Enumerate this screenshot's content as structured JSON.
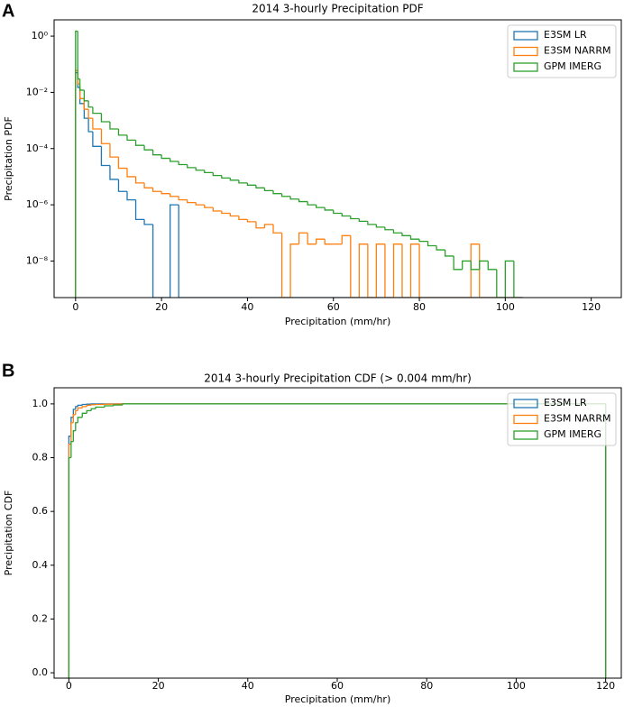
{
  "chart_data": [
    {
      "type": "histogram",
      "panel_label": "A",
      "title": "2014 3-hourly Precipitation PDF",
      "xlabel": "Precipitation (mm/hr)",
      "ylabel": "Precipitation PDF",
      "log_scale": true,
      "grid": false,
      "legend": "upper right",
      "xlim": [
        -5,
        127
      ],
      "xticks": [
        0,
        20,
        40,
        60,
        80,
        100,
        120
      ],
      "ylim": [
        5e-10,
        3.8
      ],
      "yticks": [
        {
          "value": 1,
          "label": "10⁰"
        },
        {
          "value": 0.01,
          "label": "10⁻²"
        },
        {
          "value": 0.0001,
          "label": "10⁻⁴"
        },
        {
          "value": 1e-06,
          "label": "10⁻⁶"
        },
        {
          "value": 1e-08,
          "label": "10⁻⁸"
        }
      ],
      "bins": [
        0,
        0.5,
        1,
        2,
        3,
        4,
        6,
        8,
        10,
        12,
        14,
        16,
        18,
        20,
        22,
        24,
        26,
        28,
        30,
        32,
        34,
        36,
        38,
        40,
        42,
        44,
        46,
        48,
        50,
        52,
        54,
        56,
        58,
        60,
        62,
        64,
        66,
        68,
        70,
        72,
        74,
        76,
        78,
        80,
        82,
        84,
        86,
        88,
        90,
        92,
        94,
        96,
        98,
        100,
        102,
        104
      ],
      "series": [
        {
          "name": "E3SM LR",
          "color": "#1f77b4",
          "values": [
            0.05,
            0.015,
            0.004,
            0.0012,
            0.0004,
            0.00012,
            2.5e-05,
            8e-06,
            3e-06,
            1.5e-06,
            3e-07,
            2e-07,
            0,
            0,
            1e-06,
            0,
            0,
            0,
            0,
            0,
            0,
            0,
            0,
            0,
            0,
            0,
            0,
            0,
            0,
            0,
            0,
            0,
            0,
            0,
            0,
            0,
            0,
            0,
            0,
            0,
            0,
            0,
            0,
            0,
            0,
            0,
            0,
            0,
            0,
            0,
            0,
            0,
            0,
            0,
            0
          ]
        },
        {
          "name": "E3SM NARRM",
          "color": "#ff7f0e",
          "values": [
            0.06,
            0.02,
            0.006,
            0.0025,
            0.0012,
            0.0005,
            0.00015,
            5e-05,
            2e-05,
            1e-05,
            6e-06,
            4e-06,
            3e-06,
            2.5e-06,
            2e-06,
            1.5e-06,
            1.2e-06,
            1e-06,
            8e-07,
            6e-07,
            5e-07,
            4e-07,
            3e-07,
            2.5e-07,
            1.5e-07,
            2e-07,
            1e-07,
            0,
            4e-08,
            1e-07,
            4e-08,
            6e-08,
            4e-08,
            4e-08,
            8e-08,
            0,
            4e-08,
            0,
            4e-08,
            0,
            4e-08,
            0,
            4e-08,
            0,
            0,
            0,
            0,
            0,
            0,
            4e-08,
            0,
            0,
            0,
            0,
            0
          ]
        },
        {
          "name": "GPM IMERG",
          "color": "#2ca02c",
          "values": [
            1.5,
            0.03,
            0.012,
            0.005,
            0.003,
            0.0018,
            0.0009,
            0.0005,
            0.0003,
            0.0002,
            0.00013,
            9e-05,
            6e-05,
            4.5e-05,
            3.5e-05,
            2.7e-05,
            2.1e-05,
            1.7e-05,
            1.4e-05,
            1.1e-05,
            9e-06,
            7.5e-06,
            6e-06,
            5e-06,
            4e-06,
            3.2e-06,
            2.5e-06,
            2e-06,
            1.6e-06,
            1.3e-06,
            1e-06,
            8e-07,
            6.5e-07,
            5e-07,
            4e-07,
            3.2e-07,
            2.6e-07,
            2e-07,
            1.6e-07,
            1.3e-07,
            1e-07,
            8e-08,
            6e-08,
            5e-08,
            3.5e-08,
            2.5e-08,
            1.5e-08,
            5e-09,
            1e-08,
            5e-09,
            1e-08,
            5e-09,
            0,
            1e-08,
            0
          ]
        }
      ]
    },
    {
      "type": "histogram",
      "panel_label": "B",
      "title": "2014 3-hourly Precipitation CDF (> 0.004 mm/hr)",
      "xlabel": "Precipitation (mm/hr)",
      "ylabel": "Precipitation CDF",
      "log_scale": false,
      "grid": false,
      "legend": "upper right",
      "xlim": [
        -3.3,
        123.5
      ],
      "xticks": [
        0,
        20,
        40,
        60,
        80,
        100,
        120
      ],
      "ylim": [
        -0.02,
        1.06
      ],
      "yticks": [
        {
          "value": 0,
          "label": "0.0"
        },
        {
          "value": 0.2,
          "label": "0.2"
        },
        {
          "value": 0.4,
          "label": "0.4"
        },
        {
          "value": 0.6,
          "label": "0.6"
        },
        {
          "value": 0.8,
          "label": "0.8"
        },
        {
          "value": 1,
          "label": "1.0"
        }
      ],
      "bins": [
        0,
        0.5,
        1,
        1.5,
        2,
        3,
        4,
        5,
        6,
        8,
        10,
        12,
        120
      ],
      "series": [
        {
          "name": "E3SM LR",
          "color": "#1f77b4",
          "values": [
            0.88,
            0.95,
            0.98,
            0.99,
            0.995,
            0.998,
            0.999,
            1,
            1,
            1,
            1,
            1
          ]
        },
        {
          "name": "E3SM NARRM",
          "color": "#ff7f0e",
          "values": [
            0.85,
            0.93,
            0.96,
            0.975,
            0.985,
            0.99,
            0.995,
            0.997,
            0.998,
            0.999,
            0.9995,
            1
          ]
        },
        {
          "name": "GPM IMERG",
          "color": "#2ca02c",
          "values": [
            0.8,
            0.86,
            0.9,
            0.93,
            0.95,
            0.965,
            0.975,
            0.982,
            0.988,
            0.993,
            0.996,
            1
          ]
        }
      ]
    }
  ]
}
